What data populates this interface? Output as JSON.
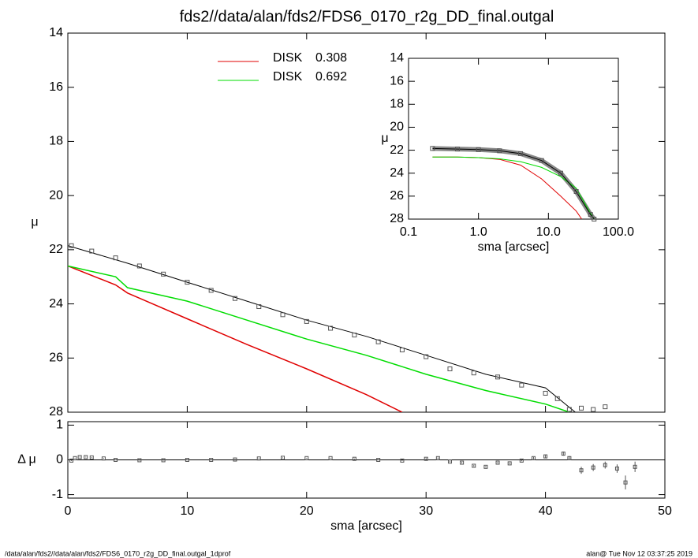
{
  "chart_data": [
    {
      "type": "line",
      "title": "fds2//data/alan/fds2/FDS6_0170_r2g_DD_final.outgal",
      "y_label": "μ",
      "xlim": [
        0,
        50
      ],
      "xticks": [
        0,
        10,
        20,
        30,
        40,
        50
      ],
      "ylim": [
        28,
        14
      ],
      "yticks": [
        14,
        16,
        18,
        20,
        22,
        24,
        26,
        28
      ],
      "points": {
        "color": "#555555",
        "x": [
          0.3,
          2,
          4,
          6,
          8,
          10,
          12,
          14,
          16,
          18,
          20,
          22,
          24,
          26,
          28,
          30,
          32,
          34,
          36,
          38,
          40,
          41,
          42,
          43,
          44,
          45
        ],
        "values": [
          21.85,
          22.05,
          22.3,
          22.6,
          22.9,
          23.2,
          23.5,
          23.8,
          24.1,
          24.4,
          24.65,
          24.9,
          25.15,
          25.4,
          25.7,
          25.95,
          26.4,
          26.55,
          26.7,
          27.0,
          27.3,
          27.5,
          27.9,
          27.85,
          27.9,
          27.8
        ]
      },
      "model": {
        "color": "#000000",
        "x": [
          0,
          5,
          10,
          15,
          20,
          25,
          30,
          35,
          40,
          42.5
        ],
        "values": [
          21.85,
          22.5,
          23.2,
          23.9,
          24.6,
          25.2,
          25.9,
          26.6,
          27.1,
          28
        ]
      },
      "series": [
        {
          "name": "DISK",
          "fraction": 0.308,
          "color": "#e00000",
          "x": [
            0,
            4,
            5,
            10,
            15,
            20,
            25,
            28
          ],
          "values": [
            22.6,
            23.3,
            23.6,
            24.55,
            25.5,
            26.4,
            27.35,
            28
          ]
        },
        {
          "name": "DISK",
          "fraction": 0.692,
          "color": "#00dd00",
          "x": [
            0,
            4,
            5,
            10,
            15,
            20,
            25,
            30,
            35,
            40,
            42
          ],
          "values": [
            22.6,
            23.0,
            23.4,
            23.9,
            24.6,
            25.3,
            25.9,
            26.6,
            27.2,
            27.7,
            28
          ]
        }
      ]
    },
    {
      "type": "scatter",
      "x_label": "sma [arcsec]",
      "y_label": "Δ μ",
      "xlim": [
        0,
        50
      ],
      "xticks": [
        0,
        10,
        20,
        30,
        40,
        50
      ],
      "ylim": [
        -1.1,
        1.1
      ],
      "yticks": [
        -1,
        0,
        1
      ],
      "color": "#555555",
      "x": [
        0.3,
        0.6,
        1,
        1.5,
        2,
        3,
        4,
        6,
        8,
        10,
        12,
        14,
        16,
        18,
        20,
        22,
        24,
        26,
        28,
        30,
        31,
        32,
        33,
        34,
        35,
        36,
        37,
        38,
        39,
        40,
        41.5,
        42,
        43,
        44,
        45,
        46,
        46.7,
        47.5
      ],
      "values": [
        -0.02,
        0.05,
        0.08,
        0.08,
        0.07,
        0.04,
        0,
        -0.01,
        -0.01,
        0,
        0,
        0.01,
        0.04,
        0.06,
        0.05,
        0.05,
        0.03,
        0,
        -0.02,
        0.03,
        0.05,
        -0.05,
        -0.08,
        -0.17,
        -0.2,
        -0.08,
        -0.1,
        -0.02,
        0.05,
        0.1,
        0.18,
        0.05,
        -0.3,
        -0.22,
        -0.15,
        -0.25,
        -0.65,
        -0.2
      ],
      "errors": [
        0.01,
        0.01,
        0.01,
        0.01,
        0.01,
        0.01,
        0.01,
        0.01,
        0.01,
        0.01,
        0.01,
        0.01,
        0.01,
        0.01,
        0.01,
        0.01,
        0.01,
        0.01,
        0.01,
        0.02,
        0.02,
        0.02,
        0.02,
        0.02,
        0.02,
        0.02,
        0.02,
        0.02,
        0.03,
        0.04,
        0.06,
        0.06,
        0.1,
        0.1,
        0.1,
        0.12,
        0.2,
        0.15
      ]
    },
    {
      "type": "line",
      "x_label": "sma [arcsec]",
      "y_label": "μ",
      "log_x": true,
      "xlim": [
        0.1,
        100
      ],
      "xticks": [
        {
          "value": 0.1,
          "label": "0.1"
        },
        {
          "value": 1,
          "label": "1.0"
        },
        {
          "value": 10,
          "label": "10.0"
        },
        {
          "value": 100,
          "label": "100.0"
        }
      ],
      "ylim": [
        28,
        14
      ],
      "yticks": [
        14,
        16,
        18,
        20,
        22,
        24,
        26,
        28
      ],
      "points": {
        "color": "#555555",
        "x": [
          0.22,
          0.5,
          1,
          2,
          4,
          8,
          15,
          25,
          40,
          45
        ],
        "values": [
          21.85,
          21.9,
          21.95,
          22.05,
          22.3,
          22.9,
          24,
          25.6,
          27.6,
          28
        ]
      },
      "model": {
        "color": "#000000",
        "x": [
          0.22,
          0.5,
          1,
          2,
          4,
          8,
          15,
          25,
          40,
          45
        ],
        "values": [
          21.85,
          21.9,
          21.95,
          22.05,
          22.3,
          22.9,
          24,
          25.6,
          27.6,
          28
        ]
      },
      "series": [
        {
          "color": "#e00000",
          "x": [
            0.22,
            0.5,
            1,
            2,
            4,
            8,
            15,
            25,
            30
          ],
          "values": [
            22.6,
            22.6,
            22.65,
            22.8,
            23.3,
            24.5,
            26.0,
            27.3,
            28
          ]
        },
        {
          "color": "#00dd00",
          "x": [
            0.22,
            0.5,
            1,
            2,
            4,
            8,
            15,
            25,
            40,
            45
          ],
          "values": [
            22.6,
            22.6,
            22.65,
            22.75,
            23.0,
            23.5,
            24.3,
            25.3,
            27.5,
            28
          ]
        }
      ]
    }
  ],
  "footer": {
    "left": "/data/alan/fds2//data/alan/fds2/FDS6_0170_r2g_DD_final.outgal_1dprof",
    "right": "alan@  Tue Nov 12 03:37:25 2019"
  }
}
